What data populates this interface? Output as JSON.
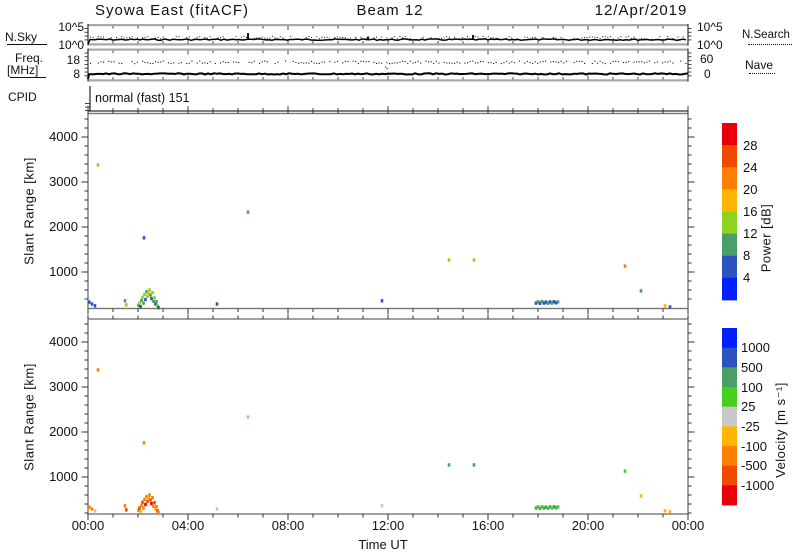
{
  "header": {
    "title": "Syowa East (fitACF)",
    "beam": "Beam 12",
    "date": "12/Apr/2019"
  },
  "left_axis": {
    "nsky_label": "N.Sky",
    "nsky_top": "10^5",
    "nsky_bottom": "10^0",
    "freq_line1": "Freq.",
    "freq_line2": "[MHz]",
    "freq_top": "18",
    "freq_bottom": "8",
    "cpid_label": "CPID"
  },
  "right_axis": {
    "nsky_top": "10^5",
    "nsky_bottom": "10^0",
    "nsearch_label": "N.Search",
    "nave_top": "60",
    "nave_bottom": "0",
    "nave_label": "Nave"
  },
  "cpid_text": "normal (fast) 151",
  "xaxis": {
    "label": "Time UT",
    "ticks": [
      "00:00",
      "04:00",
      "08:00",
      "12:00",
      "16:00",
      "20:00",
      "00:00"
    ]
  },
  "yaxis": {
    "label": "Slant Range [km]",
    "ticks": [
      "4000",
      "3000",
      "2000",
      "1000"
    ]
  },
  "power_bar": {
    "title": "Power [dB]",
    "ticks": [
      "28",
      "24",
      "20",
      "16",
      "12",
      "8",
      "4"
    ],
    "colors_top_to_bottom": [
      "#e8000a",
      "#f04900",
      "#ff7f00",
      "#ffb600",
      "#8cd41e",
      "#4a9e68",
      "#2a52c0",
      "#0020ff"
    ]
  },
  "velocity_bar": {
    "title": "Velocity [m s⁻¹]",
    "ticks": [
      "1000",
      "500",
      "100",
      "25",
      "-25",
      "-100",
      "-500",
      "-1000"
    ],
    "colors_top_to_bottom": [
      "#0020ff",
      "#2a52c0",
      "#4a9e68",
      "#46d01e",
      "#c8c8c8",
      "#ffb600",
      "#ff7f00",
      "#f04900",
      "#e8000a"
    ]
  },
  "chart_data": [
    {
      "type": "scatter",
      "name": "power",
      "title": "Power [dB]",
      "xlabel": "Time UT",
      "ylabel": "Slant Range [km]",
      "xlim_hours": [
        0,
        24
      ],
      "ylim_km": [
        180,
        4500
      ],
      "yticks_km": [
        1000,
        2000,
        3000,
        4000
      ],
      "colorbar_ticks_db": [
        28,
        24,
        20,
        16,
        12,
        8,
        4
      ],
      "points_time_km_color": [
        [
          0.05,
          330,
          "#2a52c0"
        ],
        [
          0.16,
          290,
          "#2a52c0"
        ],
        [
          0.28,
          250,
          "#2a52c0"
        ],
        [
          0.4,
          3380,
          "#8cd41e"
        ],
        [
          1.48,
          360,
          "#4a9e68"
        ],
        [
          1.53,
          270,
          "#8cd41e"
        ],
        [
          2.02,
          260,
          "#4a9e68"
        ],
        [
          2.06,
          310,
          "#8cd41e"
        ],
        [
          2.1,
          230,
          "#2a52c0"
        ],
        [
          2.14,
          370,
          "#4a9e68"
        ],
        [
          2.18,
          440,
          "#8cd41e"
        ],
        [
          2.22,
          310,
          "#4a9e68"
        ],
        [
          2.26,
          500,
          "#8cd41e"
        ],
        [
          2.3,
          390,
          "#2a52c0"
        ],
        [
          2.34,
          560,
          "#4a9e68"
        ],
        [
          2.38,
          460,
          "#8cd41e"
        ],
        [
          2.42,
          530,
          "#ffb600"
        ],
        [
          2.46,
          600,
          "#8cd41e"
        ],
        [
          2.5,
          490,
          "#4a9e68"
        ],
        [
          2.54,
          410,
          "#2a52c0"
        ],
        [
          2.58,
          540,
          "#8cd41e"
        ],
        [
          2.62,
          350,
          "#4a9e68"
        ],
        [
          2.66,
          430,
          "#8cd41e"
        ],
        [
          2.7,
          290,
          "#2a52c0"
        ],
        [
          2.74,
          340,
          "#4a9e68"
        ],
        [
          2.78,
          250,
          "#8cd41e"
        ],
        [
          2.82,
          210,
          "#2a52c0"
        ],
        [
          2.24,
          1760,
          "#2a52c0"
        ],
        [
          5.16,
          290,
          "#2a52c0"
        ],
        [
          6.4,
          2330,
          "#4a9e68"
        ],
        [
          11.76,
          360,
          "#2a52c0"
        ],
        [
          14.44,
          1270,
          "#8cd41e"
        ],
        [
          15.44,
          1270,
          "#8cd41e"
        ],
        [
          17.92,
          310,
          "#2a52c0"
        ],
        [
          18.0,
          335,
          "#4a9e68"
        ],
        [
          18.08,
          305,
          "#2a52c0"
        ],
        [
          18.16,
          340,
          "#4a9e68"
        ],
        [
          18.24,
          310,
          "#2a52c0"
        ],
        [
          18.32,
          330,
          "#2a52c0"
        ],
        [
          18.4,
          305,
          "#4a9e68"
        ],
        [
          18.48,
          335,
          "#2a52c0"
        ],
        [
          18.56,
          310,
          "#4a9e68"
        ],
        [
          18.64,
          340,
          "#2a52c0"
        ],
        [
          18.72,
          315,
          "#2a52c0"
        ],
        [
          18.8,
          335,
          "#4a9e68"
        ],
        [
          21.48,
          1130,
          "#ff7f00"
        ],
        [
          22.12,
          580,
          "#4a9e68"
        ],
        [
          23.08,
          250,
          "#ffb600"
        ],
        [
          23.28,
          225,
          "#2a52c0"
        ]
      ]
    },
    {
      "type": "scatter",
      "name": "velocity",
      "title": "Velocity [m s⁻¹]",
      "xlabel": "Time UT",
      "ylabel": "Slant Range [km]",
      "xlim_hours": [
        0,
        24
      ],
      "ylim_km": [
        180,
        4500
      ],
      "yticks_km": [
        1000,
        2000,
        3000,
        4000
      ],
      "colorbar_ticks_ms": [
        1000,
        500,
        100,
        25,
        -25,
        -100,
        -500,
        -1000
      ],
      "points_time_km_color": [
        [
          0.05,
          330,
          "#ff7f00"
        ],
        [
          0.16,
          290,
          "#ff7f00"
        ],
        [
          0.28,
          250,
          "#c8c8c8"
        ],
        [
          0.4,
          3380,
          "#ff7f00"
        ],
        [
          1.48,
          360,
          "#ff7f00"
        ],
        [
          1.53,
          270,
          "#f04900"
        ],
        [
          2.02,
          260,
          "#ff7f00"
        ],
        [
          2.06,
          310,
          "#f04900"
        ],
        [
          2.1,
          230,
          "#ffb600"
        ],
        [
          2.14,
          370,
          "#ff7f00"
        ],
        [
          2.18,
          440,
          "#f04900"
        ],
        [
          2.22,
          310,
          "#ff7f00"
        ],
        [
          2.26,
          500,
          "#ff7f00"
        ],
        [
          2.3,
          390,
          "#e8000a"
        ],
        [
          2.34,
          560,
          "#ff7f00"
        ],
        [
          2.38,
          460,
          "#f04900"
        ],
        [
          2.42,
          530,
          "#ffb600"
        ],
        [
          2.46,
          600,
          "#ff7f00"
        ],
        [
          2.5,
          490,
          "#f04900"
        ],
        [
          2.54,
          410,
          "#e8000a"
        ],
        [
          2.58,
          540,
          "#ff7f00"
        ],
        [
          2.62,
          350,
          "#ff7f00"
        ],
        [
          2.66,
          430,
          "#f04900"
        ],
        [
          2.7,
          290,
          "#ffb600"
        ],
        [
          2.74,
          340,
          "#ff7f00"
        ],
        [
          2.78,
          250,
          "#f04900"
        ],
        [
          2.82,
          210,
          "#ff7f00"
        ],
        [
          2.24,
          1760,
          "#ff7f00"
        ],
        [
          5.16,
          290,
          "#c8c8c8"
        ],
        [
          6.4,
          2330,
          "#aab8e0"
        ],
        [
          11.76,
          360,
          "#c8c8c8"
        ],
        [
          14.44,
          1270,
          "#4a9e68"
        ],
        [
          15.44,
          1270,
          "#4a9e68"
        ],
        [
          17.92,
          310,
          "#4a9e68"
        ],
        [
          18.0,
          335,
          "#46d01e"
        ],
        [
          18.08,
          305,
          "#4a9e68"
        ],
        [
          18.16,
          340,
          "#46d01e"
        ],
        [
          18.24,
          310,
          "#4a9e68"
        ],
        [
          18.32,
          330,
          "#4a9e68"
        ],
        [
          18.4,
          305,
          "#46d01e"
        ],
        [
          18.48,
          335,
          "#4a9e68"
        ],
        [
          18.56,
          310,
          "#46d01e"
        ],
        [
          18.64,
          340,
          "#4a9e68"
        ],
        [
          18.72,
          315,
          "#4a9e68"
        ],
        [
          18.8,
          335,
          "#46d01e"
        ],
        [
          21.48,
          1130,
          "#46d01e"
        ],
        [
          22.12,
          580,
          "#ffb600"
        ],
        [
          23.08,
          250,
          "#ffb600"
        ],
        [
          23.28,
          225,
          "#ffb600"
        ]
      ]
    },
    {
      "type": "line",
      "name": "nsky-panel",
      "left_ticks": [
        "10^5",
        "10^0"
      ],
      "series": [
        {
          "name": "N.Sky",
          "style": "solid",
          "shape": "flat noisy line near 10^1 with small spikes"
        },
        {
          "name": "N.Search",
          "style": "dotted",
          "shape": "scattered dots near the solid line"
        }
      ],
      "spike_hours": [
        6.4,
        11.2,
        15.4
      ]
    },
    {
      "type": "line",
      "name": "freq-nave-panel",
      "left_label": "Freq. [MHz]",
      "left_ticks": [
        "18",
        "8"
      ],
      "right_ticks": [
        "60",
        "0"
      ],
      "series": [
        {
          "name": "Nave",
          "style": "dotted",
          "approx_level": "~40 (right scale 0-60)"
        },
        {
          "name": "Freq",
          "style": "solid",
          "approx_level": "~9 MHz, flat"
        }
      ]
    },
    {
      "type": "text",
      "name": "cpid-panel",
      "value": "normal (fast) 151"
    }
  ]
}
